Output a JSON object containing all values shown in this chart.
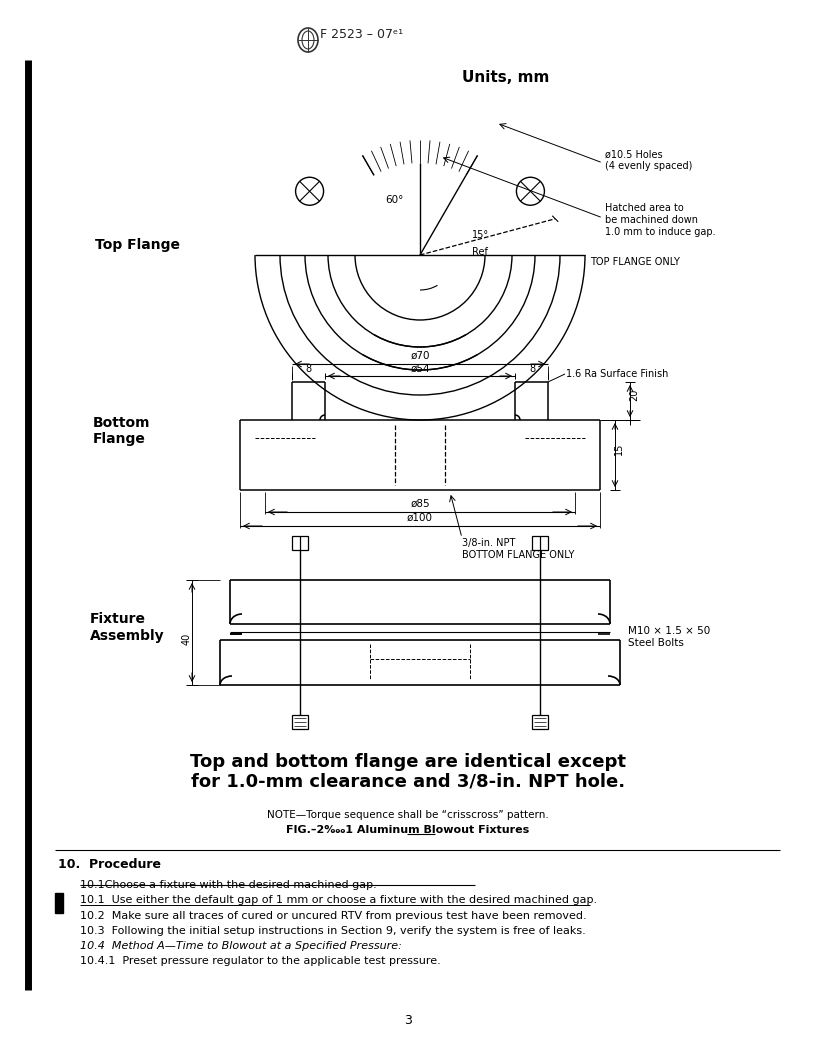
{
  "page_width": 8.16,
  "page_height": 10.56,
  "background": "#ffffff",
  "units_text": "Units, mm",
  "top_flange_label": "Top Flange",
  "bottom_flange_label": "Bottom\nFlange",
  "fixture_label": "Fixture\nAssembly",
  "top_flange_only": "TOP FLANGE ONLY",
  "bottom_flange_only": "BOTTOM FLANGE ONLY",
  "annotation_holes": "ø10.5 Holes\n(4 evenly spaced)",
  "annotation_hatch": "Hatched area to\nbe machined down\n1.0 mm to induce gap.",
  "annotation_surface": "1.6 Ra Surface Finish",
  "annotation_npt": "3/8-in. NPT",
  "annotation_bolts": "M10 × 1.5 × 50\nSteel Bolts",
  "dim_70": "ø70",
  "dim_54": "ø54",
  "dim_85": "ø85",
  "dim_100": "ø100",
  "dim_8L": "8",
  "dim_8R": "8",
  "dim_15": "15",
  "dim_20": "20",
  "dim_40": "40",
  "angle_60": "60°",
  "angle_15": "15°",
  "angle_ref": "Ref",
  "bold_text_1": "Top and bottom flange are identical except",
  "bold_text_2": "for 1.0-mm clearance and 3/8-in. NPT hole.",
  "note_text": "NOTE—Torque sequence shall be “crisscross” pattern.",
  "fig_caption": "FIG.–2‱1 Aluminum Blowout Fixtures",
  "section_heading": "10.  Procedure",
  "strikethrough_text": "10.1Choose a fixture with the desired machined gap.",
  "underline_text": "10.1  Use either the default gap of 1 mm or choose a fixture with the desired machined gap.",
  "line_102": "10.2  Make sure all traces of cured or uncured RTV from previous test have been removed.",
  "line_103": "10.3  Following the initial setup instructions in Section 9, verify the system is free of leaks.",
  "line_104": "10.4  Method A—Time to Blowout at a Specified Pressure:",
  "line_1041": "10.4.1  Preset pressure regulator to the applicable test pressure.",
  "page_num": "3"
}
